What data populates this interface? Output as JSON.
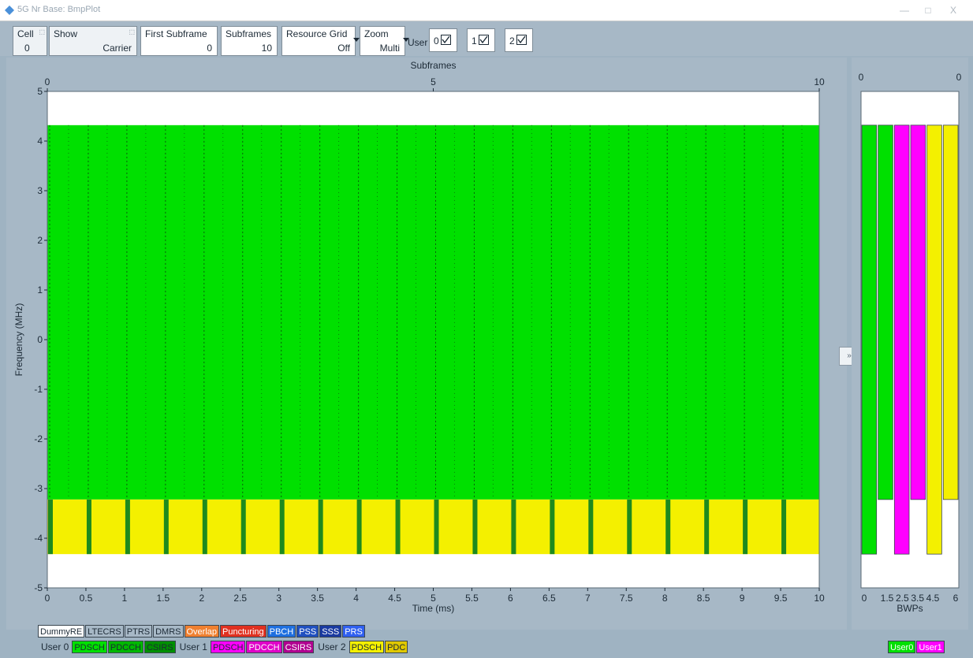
{
  "window": {
    "title": "5G Nr Base: BmpPlot",
    "minimize": "—",
    "maximize": "□",
    "close": "X"
  },
  "toolbar": {
    "cell": {
      "label": "Cell",
      "value": "0"
    },
    "show": {
      "label": "Show",
      "value": "Carrier"
    },
    "first_subframe": {
      "label": "First Subframe",
      "value": "0"
    },
    "subframes": {
      "label": "Subframes",
      "value": "10"
    },
    "resource_grid": {
      "label": "Resource Grid",
      "value": "Off"
    },
    "zoom": {
      "label": "Zoom",
      "value": "Multi"
    },
    "user_label": "User",
    "users": [
      {
        "label": "0",
        "checked": true
      },
      {
        "label": "1",
        "checked": true
      },
      {
        "label": "2",
        "checked": true
      }
    ]
  },
  "chart_data": [
    {
      "type": "heatmap",
      "title": "Subframes",
      "xlabel": "Time (ms)",
      "ylabel": "Frequency (MHz)",
      "xlim": [
        0,
        10
      ],
      "ylim": [
        -5,
        5
      ],
      "x_ticks": [
        "0",
        "0.5",
        "1",
        "1.5",
        "2",
        "2.5",
        "3",
        "3.5",
        "4",
        "4.5",
        "5",
        "5.5",
        "6",
        "6.5",
        "7",
        "7.5",
        "8",
        "8.5",
        "9",
        "9.5",
        "10"
      ],
      "top_ticks": [
        "0",
        "5",
        "10"
      ],
      "y_ticks": [
        "5",
        "4",
        "3",
        "2",
        "1",
        "0",
        "-1",
        "-2",
        "-3",
        "-4",
        "-5"
      ],
      "regions": [
        {
          "name": "User 0 PDSCH",
          "color": "#00e000",
          "freq_range": [
            -3.22,
            4.32
          ],
          "time_range": [
            0,
            10
          ]
        },
        {
          "name": "User 2 PDSCH",
          "color": "#f4f000",
          "freq_range": [
            -4.32,
            -3.22
          ],
          "time_range": [
            0,
            10
          ]
        }
      ],
      "slot_duration_ms": 0.5
    },
    {
      "type": "bar",
      "xlabel": "BWPs",
      "top_ticks": [
        "0",
        "0"
      ],
      "x_ticks": [
        "0",
        "1.5",
        "2.5",
        "3.5",
        "4.5",
        "6"
      ],
      "bars": [
        {
          "user": "User0",
          "color": "#00e000",
          "freq_range": [
            -4.32,
            4.32
          ]
        },
        {
          "user": "User0",
          "color": "#00e000",
          "freq_range": [
            -3.22,
            4.32
          ]
        },
        {
          "user": "User1",
          "color": "#ff00ff",
          "freq_range": [
            -4.32,
            4.32
          ]
        },
        {
          "user": "User1",
          "color": "#ff00ff",
          "freq_range": [
            -3.22,
            4.32
          ]
        },
        {
          "user": "User2",
          "color": "#f4f000",
          "freq_range": [
            -4.32,
            4.32
          ]
        },
        {
          "user": "User2",
          "color": "#f4f000",
          "freq_range": [
            -3.22,
            4.32
          ]
        }
      ]
    }
  ],
  "collapse_button": "»",
  "legend": {
    "row1": [
      {
        "label": "DummyRE",
        "bg": "#ffffff",
        "fg": "#1c2a36"
      },
      {
        "label": "LTECRS",
        "bg": "#a7b8c6",
        "fg": "#1c2a36"
      },
      {
        "label": "PTRS",
        "bg": "#a7b8c6",
        "fg": "#1c2a36"
      },
      {
        "label": "DMRS",
        "bg": "#a7b8c6",
        "fg": "#1c2a36"
      },
      {
        "label": "Overlap",
        "bg": "#f08030",
        "fg": "#ffffff"
      },
      {
        "label": "Puncturing",
        "bg": "#e03020",
        "fg": "#ffffff"
      },
      {
        "label": "PBCH",
        "bg": "#1e6fe0",
        "fg": "#ffffff"
      },
      {
        "label": "PSS",
        "bg": "#2050c0",
        "fg": "#ffffff"
      },
      {
        "label": "SSS",
        "bg": "#1a3aa0",
        "fg": "#ffffff"
      },
      {
        "label": "PRS",
        "bg": "#3060f0",
        "fg": "#ffffff"
      }
    ],
    "row2": [
      {
        "kind": "text",
        "label": "User 0"
      },
      {
        "label": "PDSCH",
        "bg": "#00e000",
        "fg": "#1c2a36"
      },
      {
        "label": "PDCCH",
        "bg": "#00b800",
        "fg": "#1c2a36"
      },
      {
        "label": "CSIRS",
        "bg": "#009000",
        "fg": "#1c2a36"
      },
      {
        "kind": "text",
        "label": "User 1"
      },
      {
        "label": "PDSCH",
        "bg": "#ff00ff",
        "fg": "#1c2a36"
      },
      {
        "label": "PDCCH",
        "bg": "#e000c8",
        "fg": "#ffffff"
      },
      {
        "label": "CSIRS",
        "bg": "#b00090",
        "fg": "#ffffff"
      },
      {
        "kind": "text",
        "label": "User 2"
      },
      {
        "label": "PDSCH",
        "bg": "#f4f000",
        "fg": "#1c2a36"
      },
      {
        "label": "PDC",
        "bg": "#e0c800",
        "fg": "#1c2a36"
      }
    ],
    "side": [
      {
        "label": "User0",
        "bg": "#00e000",
        "fg": "#ffffff"
      },
      {
        "label": "User1",
        "bg": "#ff00ff",
        "fg": "#ffffff"
      }
    ]
  }
}
